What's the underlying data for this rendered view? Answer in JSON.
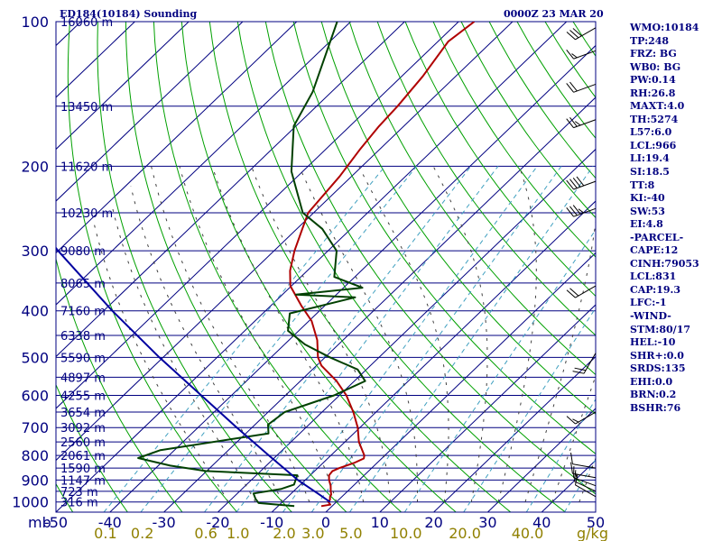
{
  "title_left": "ED184(10184) Sounding",
  "title_right": "0000Z 23 MAR 20",
  "indices": [
    "WMO:10184",
    "TP:248",
    "FRZ: BG",
    "WB0: BG",
    "PW:0.14",
    "RH:26.8",
    "MAXT:4.0",
    "TH:5274",
    "L57:6.0",
    "LCL:966",
    "LI:19.4",
    "SI:18.5",
    "TT:8",
    "KI:-40",
    "SW:53",
    "EI:4.8",
    "-PARCEL-",
    "CAPE:12",
    "CINH:79053",
    "LCL:831",
    "CAP:19.3",
    "LFC:-1",
    "-WIND-",
    "STM:80/17",
    "HEL:-10",
    "SHR+:0.0",
    "SRDS:135",
    "EHI:0.0",
    "BRN:0.2",
    "BSHR:76"
  ],
  "colors": {
    "frame": "#000080",
    "temperature": "#b00000",
    "dewpoint": "#004000",
    "parcel": "#0000a0",
    "dry_adiabat": "#00a000",
    "mixing_ratio": "#40a0c0",
    "moist_adiabat": "#404040",
    "axis_labels": "#000080",
    "mixing_labels": "#908000",
    "barbs": "#000000"
  },
  "chart_data": {
    "type": "skew-t",
    "pressure_axis": {
      "unit": "mb",
      "ylim": [
        1050,
        100
      ],
      "scale": "log",
      "labels": [
        "100",
        "200",
        "300",
        "400",
        "500",
        "600",
        "700",
        "800",
        "900",
        "1000"
      ],
      "ticks": [
        100,
        200,
        300,
        400,
        500,
        600,
        700,
        800,
        900,
        1000
      ]
    },
    "temperature_axis": {
      "xlim": [
        -50,
        50
      ],
      "labels": [
        "-50",
        "-40",
        "-30",
        "-20",
        "-10",
        "0",
        "10",
        "20",
        "30",
        "40",
        "50"
      ],
      "ticks": [
        -50,
        -40,
        -30,
        -20,
        -10,
        0,
        10,
        20,
        30,
        40,
        50
      ]
    },
    "height_levels": [
      {
        "p": 100,
        "label": "16060 m"
      },
      {
        "p": 150,
        "label": "13450 m"
      },
      {
        "p": 200,
        "label": "11620 m"
      },
      {
        "p": 250,
        "label": "10230 m"
      },
      {
        "p": 300,
        "label": "9080 m"
      },
      {
        "p": 350,
        "label": "8065 m"
      },
      {
        "p": 400,
        "label": "7160 m"
      },
      {
        "p": 450,
        "label": "6338 m"
      },
      {
        "p": 500,
        "label": "5590 m"
      },
      {
        "p": 550,
        "label": "4897 m"
      },
      {
        "p": 600,
        "label": "4255 m"
      },
      {
        "p": 650,
        "label": "3654 m"
      },
      {
        "p": 700,
        "label": "3092 m"
      },
      {
        "p": 750,
        "label": "2560 m"
      },
      {
        "p": 800,
        "label": "2061 m"
      },
      {
        "p": 850,
        "label": "1590 m"
      },
      {
        "p": 900,
        "label": "1147 m"
      },
      {
        "p": 950,
        "label": "723 m"
      },
      {
        "p": 1000,
        "label": "316 m"
      }
    ],
    "mixing_ratio_labels": [
      {
        "w": 0.1,
        "label": "0.1"
      },
      {
        "w": 0.2,
        "label": "0.2"
      },
      {
        "w": 0.6,
        "label": "0.6"
      },
      {
        "w": 1.0,
        "label": "1.0"
      },
      {
        "w": 2.0,
        "label": "2.0"
      },
      {
        "w": 3.0,
        "label": "3.0"
      },
      {
        "w": 5.0,
        "label": "5.0"
      },
      {
        "w": 10.0,
        "label": "10.0"
      },
      {
        "w": 20.0,
        "label": "20.0"
      },
      {
        "w": 40.0,
        "label": "40.0"
      }
    ],
    "mixing_ratio_unit": "g/kg",
    "mixing_ratio_lines": [
      0.1,
      0.2,
      0.6,
      1,
      2,
      3,
      5,
      10,
      20,
      40,
      60
    ],
    "dry_adiabats": [
      -60,
      -50,
      -40,
      -30,
      -20,
      -10,
      0,
      10,
      20,
      30,
      40,
      50,
      60,
      70,
      80,
      90,
      100,
      110,
      120,
      130,
      140,
      150,
      160,
      170,
      180
    ],
    "moist_adiabats": [
      -20,
      -15,
      -10,
      -5,
      0,
      5,
      10,
      15,
      20,
      25,
      30,
      35,
      40,
      45
    ],
    "series": [
      {
        "kind": "temperature",
        "points": [
          [
            1020,
            -2.0
          ],
          [
            1013,
            -0.6
          ],
          [
            1000,
            -1.5
          ],
          [
            990,
            -1.6
          ],
          [
            975,
            -2.2
          ],
          [
            965,
            -2.4
          ],
          [
            950,
            -3.1
          ],
          [
            925,
            -4.2
          ],
          [
            900,
            -5.6
          ],
          [
            880,
            -6.5
          ],
          [
            862,
            -6.7
          ],
          [
            850,
            -6.0
          ],
          [
            830,
            -4.3
          ],
          [
            812,
            -3.3
          ],
          [
            800,
            -3.8
          ],
          [
            750,
            -7.4
          ],
          [
            700,
            -10.4
          ],
          [
            650,
            -14.2
          ],
          [
            600,
            -18.7
          ],
          [
            560,
            -23.3
          ],
          [
            520,
            -29.1
          ],
          [
            500,
            -31.3
          ],
          [
            460,
            -34.8
          ],
          [
            420,
            -39.5
          ],
          [
            390,
            -44.4
          ],
          [
            355,
            -50.2
          ],
          [
            330,
            -53.2
          ],
          [
            300,
            -56.2
          ],
          [
            270,
            -59.0
          ],
          [
            250,
            -61.0
          ],
          [
            210,
            -62.2
          ],
          [
            185,
            -63.6
          ],
          [
            165,
            -64.6
          ],
          [
            150,
            -65.0
          ],
          [
            130,
            -66.1
          ],
          [
            110,
            -68.1
          ],
          [
            100,
            -67.1
          ]
        ]
      },
      {
        "kind": "dewpoint",
        "points": [
          [
            1020,
            -7.0
          ],
          [
            1005,
            -14.2
          ],
          [
            985,
            -15.6
          ],
          [
            960,
            -17.0
          ],
          [
            940,
            -12.8
          ],
          [
            920,
            -11.2
          ],
          [
            880,
            -12.4
          ],
          [
            862,
            -30.2
          ],
          [
            840,
            -37.8
          ],
          [
            810,
            -45.2
          ],
          [
            780,
            -42.6
          ],
          [
            720,
            -25.8
          ],
          [
            690,
            -27.6
          ],
          [
            650,
            -26.9
          ],
          [
            600,
            -21.0
          ],
          [
            560,
            -18.0
          ],
          [
            530,
            -21.6
          ],
          [
            500,
            -29.1
          ],
          [
            470,
            -36.2
          ],
          [
            440,
            -42.0
          ],
          [
            405,
            -45.0
          ],
          [
            375,
            -36.0
          ],
          [
            370,
            -47.5
          ],
          [
            358,
            -36.5
          ],
          [
            340,
            -43.8
          ],
          [
            300,
            -48.4
          ],
          [
            270,
            -55.3
          ],
          [
            250,
            -62.0
          ],
          [
            205,
            -72.1
          ],
          [
            165,
            -80.4
          ],
          [
            140,
            -83.5
          ],
          [
            100,
            -92.5
          ]
        ]
      },
      {
        "kind": "parcel",
        "points": [
          [
            1000,
            -1.2
          ],
          [
            966,
            -4.5
          ],
          [
            900,
            -11.4
          ],
          [
            850,
            -16.3
          ],
          [
            800,
            -21.5
          ],
          [
            700,
            -32.8
          ],
          [
            600,
            -45.6
          ],
          [
            500,
            -60.7
          ],
          [
            400,
            -78.4
          ],
          [
            300,
            -100.0
          ],
          [
            250,
            -112.7
          ],
          [
            200,
            -127.6
          ],
          [
            150,
            -145.7
          ],
          [
            120,
            -158.8
          ]
        ]
      }
    ],
    "wind_barbs": [
      {
        "p": 975,
        "dir": 300,
        "kts": 10
      },
      {
        "p": 950,
        "dir": 295,
        "kts": 10
      },
      {
        "p": 925,
        "dir": 290,
        "kts": 15
      },
      {
        "p": 890,
        "dir": 280,
        "kts": 10
      },
      {
        "p": 850,
        "dir": 280,
        "kts": 10
      },
      {
        "p": 650,
        "dir": 240,
        "kts": 15
      },
      {
        "p": 490,
        "dir": 210,
        "kts": 20
      },
      {
        "p": 355,
        "dir": 240,
        "kts": 20
      },
      {
        "p": 245,
        "dir": 250,
        "kts": 35
      },
      {
        "p": 215,
        "dir": 250,
        "kts": 40
      },
      {
        "p": 160,
        "dir": 250,
        "kts": 25
      },
      {
        "p": 135,
        "dir": 250,
        "kts": 20
      },
      {
        "p": 115,
        "dir": 250,
        "kts": 15
      },
      {
        "p": 103,
        "dir": 240,
        "kts": 30
      }
    ]
  }
}
